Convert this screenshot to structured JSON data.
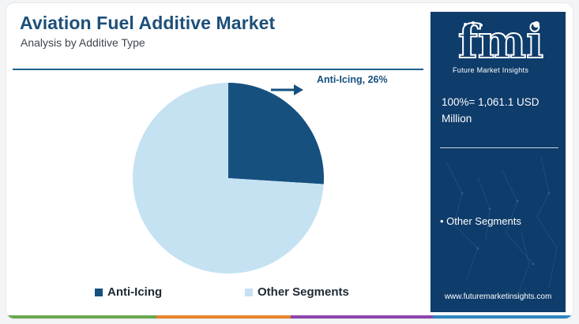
{
  "header": {
    "title": "Aviation Fuel Additive Market",
    "subtitle": "Analysis by Additive Type"
  },
  "colors": {
    "anti_icing": "#15507f",
    "other_segments": "#c5e2f3",
    "brand_navy": "#0e3c6b",
    "footer": [
      "#6aa84f",
      "#e9842a",
      "#8e44ad",
      "#2e86c1"
    ]
  },
  "chart_data": {
    "type": "pie",
    "slices": [
      {
        "label": "Anti-Icing",
        "value": 26
      },
      {
        "label": "Other Segments",
        "value": 74
      }
    ],
    "annotations": [
      {
        "text": "Anti-Icing, 26%"
      }
    ],
    "legend": [
      "Anti-Icing",
      "Other Segments"
    ],
    "legend_placement": "bottom"
  },
  "legend": {
    "anti_icing_label": "Anti-Icing",
    "other_label": "Other Segments"
  },
  "sidebar": {
    "logo_letters": "fmi",
    "logo_tagline": "Future Market Insights",
    "total": "100%= 1,061.1 USD Million",
    "segment_bullet": "• Other Segments",
    "url": "www.futuremarketinsights.com"
  },
  "icons": {
    "arrow": "arrow-right-icon"
  }
}
